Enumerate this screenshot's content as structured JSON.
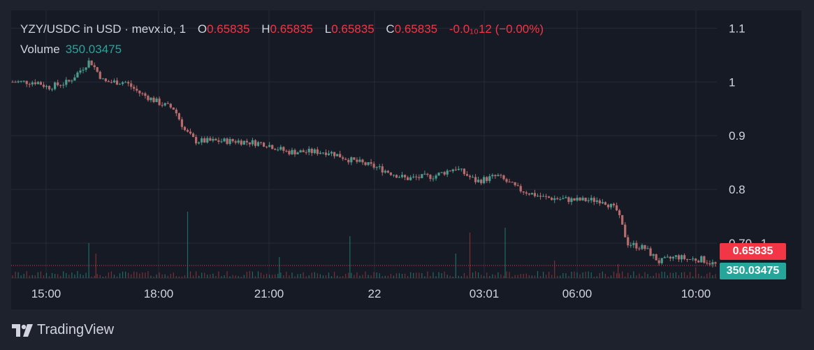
{
  "legend": {
    "pair": "YZY/USDC in USD · mevx.io, 1",
    "o_label": "O",
    "o_value": "0.65835",
    "h_label": "H",
    "h_value": "0.65835",
    "l_label": "L",
    "l_value": "0.65835",
    "c_label": "C",
    "c_value": "0.65835",
    "change": "-0.0₁₀12 (−0.00%)",
    "volume_label": "Volume",
    "volume_value": "350.03475"
  },
  "price_tag": "0.65835",
  "volume_tag": "350.03475",
  "brand": "TradingView",
  "colors": {
    "up": "#26a69a",
    "down": "#f23645",
    "candle_up": "#4a9b8e",
    "candle_down": "#b86b6b",
    "background": "#161a25"
  },
  "chart_data": {
    "type": "candlestick",
    "symbol": "YZY/USDC",
    "interval": "1",
    "y_ticks": [
      "1.1",
      "1",
      "0.9",
      "0.8",
      "0.70₁₄1"
    ],
    "y_tick_values": [
      1.1,
      1.0,
      0.9,
      0.8,
      0.7
    ],
    "ylim": [
      0.635,
      1.12
    ],
    "x_ticks": [
      "15:00",
      "18:00",
      "21:00",
      "22",
      "03:01",
      "06:00",
      "10:00"
    ],
    "last_price": 0.65835,
    "last_volume": 350.03475,
    "price_path": [
      [
        0.0,
        1.0
      ],
      [
        0.035,
        1.0
      ],
      [
        0.05,
        0.99
      ],
      [
        0.08,
        1.0
      ],
      [
        0.11,
        1.04
      ],
      [
        0.13,
        1.0
      ],
      [
        0.16,
        1.0
      ],
      [
        0.18,
        0.98
      ],
      [
        0.21,
        0.96
      ],
      [
        0.23,
        0.95
      ],
      [
        0.245,
        0.91
      ],
      [
        0.26,
        0.89
      ],
      [
        0.32,
        0.89
      ],
      [
        0.36,
        0.885
      ],
      [
        0.39,
        0.87
      ],
      [
        0.45,
        0.87
      ],
      [
        0.48,
        0.855
      ],
      [
        0.52,
        0.84
      ],
      [
        0.56,
        0.82
      ],
      [
        0.6,
        0.825
      ],
      [
        0.63,
        0.84
      ],
      [
        0.66,
        0.815
      ],
      [
        0.69,
        0.825
      ],
      [
        0.72,
        0.8
      ],
      [
        0.755,
        0.785
      ],
      [
        0.8,
        0.78
      ],
      [
        0.84,
        0.78
      ],
      [
        0.86,
        0.76
      ],
      [
        0.875,
        0.7
      ],
      [
        0.9,
        0.69
      ],
      [
        0.92,
        0.665
      ],
      [
        0.945,
        0.675
      ],
      [
        0.96,
        0.67
      ],
      [
        0.98,
        0.67
      ],
      [
        1.0,
        0.66
      ]
    ],
    "volume_spikes": [
      [
        0.11,
        50
      ],
      [
        0.12,
        35
      ],
      [
        0.25,
        95
      ],
      [
        0.38,
        30
      ],
      [
        0.48,
        60
      ],
      [
        0.63,
        35
      ],
      [
        0.65,
        65
      ],
      [
        0.7,
        72
      ],
      [
        0.77,
        25
      ],
      [
        0.86,
        20
      ],
      [
        0.97,
        15
      ]
    ]
  }
}
